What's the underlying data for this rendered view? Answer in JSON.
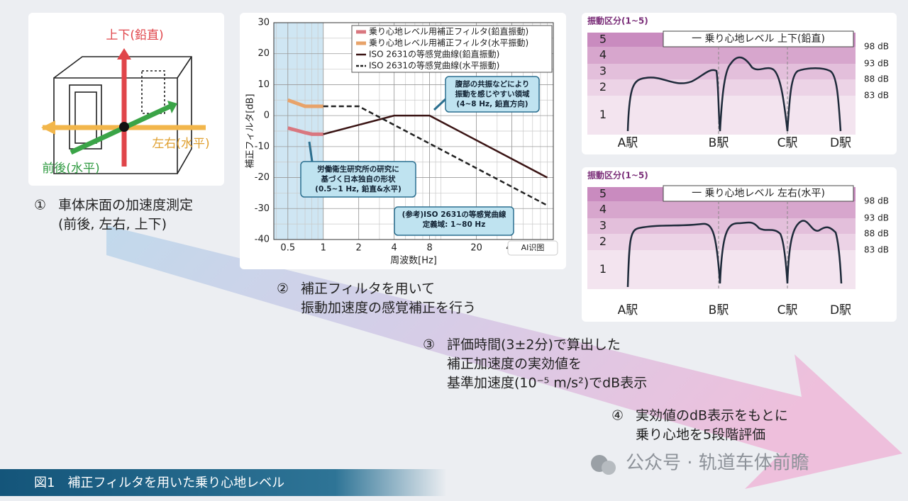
{
  "axes_figure": {
    "vertical": "上下(鉛直)",
    "lateral": "左右(水平)",
    "longitudinal": "前後(水平)"
  },
  "steps": [
    {
      "number": "①",
      "lines": [
        "車体床面の加速度測定",
        "(前後, 左右, 上下)"
      ]
    },
    {
      "number": "②",
      "lines": [
        "補正フィルタを用いて",
        "振動加速度の感覚補正を行う"
      ]
    },
    {
      "number": "③",
      "lines": [
        "評価時間(3±2分)で算出した",
        "補正加速度の実効値を",
        "基準加速度(10⁻⁵ m/s²)でdB表示"
      ]
    },
    {
      "number": "④",
      "lines": [
        "実効値のdB表示をもとに",
        "乗り心地を5段階評価"
      ]
    }
  ],
  "filter_chart": {
    "type": "line",
    "x_label": "周波数[Hz]",
    "y_label": "補正フィルタ[dB]",
    "x_scale": "log",
    "xlim": [
      0.38,
      90
    ],
    "xticks": [
      0.5,
      1,
      2,
      4,
      8,
      20,
      40
    ],
    "ylim": [
      -40,
      30
    ],
    "yticks": [
      -40,
      -30,
      -20,
      -10,
      0,
      10,
      20,
      30
    ],
    "grid": true,
    "shade_xmax": 1,
    "series": [
      {
        "name": "乗り心地レベル用補正フィルタ(鉛直振動)",
        "color": "#d9777f",
        "dash": false,
        "x": [
          0.5,
          0.7,
          0.8,
          1
        ],
        "values": [
          -4,
          -5.5,
          -6,
          -6
        ]
      },
      {
        "name": "乗り心地レベル用補正フィルタ(水平振動)",
        "color": "#e8a36a",
        "dash": false,
        "x": [
          0.5,
          0.7,
          1
        ],
        "values": [
          5,
          3,
          3
        ]
      },
      {
        "name": "ISO 2631の等感覚曲線(鉛直振動)",
        "color": "#3a1414",
        "dash": false,
        "x": [
          1,
          4,
          8,
          80
        ],
        "values": [
          -6,
          0,
          0,
          -20
        ]
      },
      {
        "name": "ISO 2631の等感覚曲線(水平振動)",
        "color": "#222222",
        "dash": true,
        "x": [
          1,
          2,
          80
        ],
        "values": [
          3,
          3,
          -29
        ]
      }
    ],
    "annotations": [
      {
        "lines": [
          "腹部の共振などにより",
          "振動を感じやすい領域",
          "(4~8 Hz, 鉛直方向)"
        ]
      },
      {
        "lines": [
          "労働衛生研究所の研究に",
          "基づく日本独自の形状",
          "(0.5~1 Hz, 鉛直&水平)"
        ]
      },
      {
        "lines": [
          "(参考)ISO 2631の等感覚曲線",
          "定義域: 1~80 Hz"
        ]
      }
    ],
    "overlay_button": "AI识图"
  },
  "panels": [
    {
      "title": "振動区分(1~5)",
      "legend": "一 乗り心地レベル 上下(鉛直)",
      "levels": [
        "1",
        "2",
        "3",
        "4",
        "5"
      ],
      "db_labels": [
        "83 dB",
        "88 dB",
        "93 dB",
        "98 dB"
      ],
      "stations": [
        "A駅",
        "B駅",
        "C駅",
        "D駅"
      ]
    },
    {
      "title": "振動区分(1~5)",
      "legend": "一 乗り心地レベル 左右(水平)",
      "levels": [
        "1",
        "2",
        "3",
        "4",
        "5"
      ],
      "db_labels": [
        "83 dB",
        "88 dB",
        "93 dB",
        "98 dB"
      ],
      "stations": [
        "A駅",
        "B駅",
        "C駅",
        "D駅"
      ]
    }
  ],
  "caption": "図1　補正フィルタを用いた乗り心地レベル",
  "watermark": "公众号 · 轨道车体前瞻"
}
